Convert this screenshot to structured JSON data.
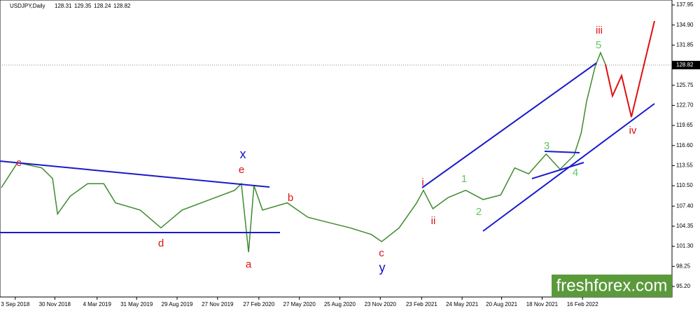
{
  "chart_data": {
    "type": "line",
    "title": "USDJPY,Daily",
    "ohlc": [
      128.31,
      129.35,
      128.24,
      128.82
    ],
    "last_price": 128.82,
    "watermark": "freshforex.com",
    "x": [
      "2018-08-03",
      "2018-09-08",
      "2018-11-01",
      "2018-11-25",
      "2018-12-06",
      "2019-01-03",
      "2019-02-11",
      "2019-03-19",
      "2019-04-14",
      "2019-06-08",
      "2019-07-24",
      "2019-09-09",
      "2019-11-10",
      "2020-01-04",
      "2020-01-19",
      "2020-02-04",
      "2020-02-16",
      "2020-03-06",
      "2020-04-30",
      "2020-06-15",
      "2020-08-01",
      "2020-09-17",
      "2020-11-03",
      "2020-11-26",
      "2021-01-04",
      "2021-02-12",
      "2021-02-27",
      "2021-03-20",
      "2021-04-23",
      "2021-06-01",
      "2021-07-10",
      "2021-08-18",
      "2021-09-18",
      "2021-10-19",
      "2021-11-27",
      "2021-12-28",
      "2022-01-28",
      "2022-02-13",
      "2022-02-25",
      "2022-03-16",
      "2022-03-28",
      "2022-04-08"
    ],
    "series": [
      {
        "color": "#3f8a2e",
        "values": [
          110.2,
          114.0,
          113.2,
          111.6,
          106.2,
          108.9,
          110.8,
          110.8,
          107.9,
          106.8,
          104.1,
          106.8,
          108.4,
          109.8,
          110.8,
          100.4,
          110.5,
          106.8,
          107.9,
          105.7,
          104.9,
          104.1,
          103.1,
          102.0,
          104.1,
          107.9,
          109.8,
          107.0,
          108.7,
          109.8,
          108.4,
          109.1,
          113.2,
          112.3,
          115.3,
          113.0,
          115.1,
          118.5,
          123.3,
          128.6,
          130.7,
          128.9
        ]
      }
    ],
    "xlim": [
      "2018-07-31",
      "2022-09-03"
    ],
    "xticks": [
      {
        "value": "2018-09-03",
        "label": "3 Sep 2018"
      },
      {
        "value": "2018-11-30",
        "label": "30 Nov 2018"
      },
      {
        "value": "2019-03-04",
        "label": "4 Mar 2019"
      },
      {
        "value": "2019-05-31",
        "label": "31 May 2019"
      },
      {
        "value": "2019-08-29",
        "label": "29 Aug 2019"
      },
      {
        "value": "2019-11-27",
        "label": "27 Nov 2019"
      },
      {
        "value": "2020-02-27",
        "label": "27 Feb 2020"
      },
      {
        "value": "2020-05-27",
        "label": "27 May 2020"
      },
      {
        "value": "2020-08-25",
        "label": "25 Aug 2020"
      },
      {
        "value": "2020-11-23",
        "label": "23 Nov 2020"
      },
      {
        "value": "2021-02-23",
        "label": "23 Feb 2021"
      },
      {
        "value": "2021-05-24",
        "label": "24 May 2021"
      },
      {
        "value": "2021-08-20",
        "label": "20 Aug 2021"
      },
      {
        "value": "2021-11-18",
        "label": "18 Nov 2021"
      },
      {
        "value": "2022-02-16",
        "label": "16 Feb 2022"
      }
    ],
    "ylim": [
      93.6,
      138.7
    ],
    "yticks": [
      {
        "value": 95.2,
        "label": "95.20"
      },
      {
        "value": 98.25,
        "label": "98.25"
      },
      {
        "value": 101.3,
        "label": "101.30"
      },
      {
        "value": 104.35,
        "label": "104.35"
      },
      {
        "value": 107.4,
        "label": "107.40"
      },
      {
        "value": 110.5,
        "label": "110.50"
      },
      {
        "value": 113.55,
        "label": "113.55"
      },
      {
        "value": 116.6,
        "label": "116.60"
      },
      {
        "value": 119.65,
        "label": "119.65"
      },
      {
        "value": 122.7,
        "label": "122.70"
      },
      {
        "value": 125.75,
        "label": "125.75"
      },
      {
        "value": 128.8,
        "label": "128.80"
      },
      {
        "value": 131.85,
        "label": "131.85"
      },
      {
        "value": 134.9,
        "label": "134.90"
      },
      {
        "value": 137.95,
        "label": "137.95"
      }
    ],
    "wave_labels": [
      "c",
      "d",
      "a",
      "x",
      "e",
      "b",
      "c",
      "y",
      "i",
      "ii",
      "1",
      "2",
      "3",
      "4",
      "5",
      "iii",
      "iv"
    ]
  }
}
